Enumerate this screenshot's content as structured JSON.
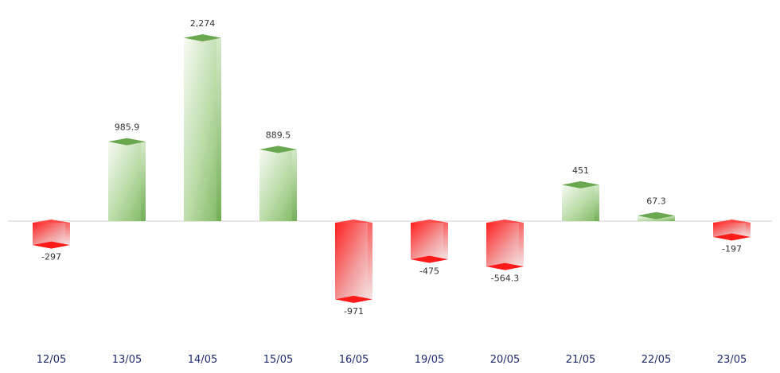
{
  "chart_data": {
    "type": "bar",
    "categories": [
      "12/05",
      "13/05",
      "14/05",
      "15/05",
      "16/05",
      "19/05",
      "20/05",
      "21/05",
      "22/05",
      "23/05"
    ],
    "values": [
      -297,
      985.9,
      2274,
      889.5,
      -971,
      -475,
      -564.3,
      451,
      67.3,
      -197
    ],
    "value_labels": [
      "-297",
      "985.9",
      "2,274",
      "889.5",
      "-971",
      "-475",
      "-564.3",
      "451",
      "67.3",
      "-197"
    ],
    "title": "",
    "xlabel": "",
    "ylabel": "",
    "ylim": [
      -1000,
      2300
    ],
    "grid": false,
    "legend": "none",
    "colors": {
      "positive": "#6aa84f",
      "positive_light": "#eef6e8",
      "negative": "#ff1a1a",
      "negative_light": "#f5e6e6",
      "axis": "#d0d0d0",
      "tick_text": "#1f2a6b",
      "value_text": "#333333"
    }
  }
}
